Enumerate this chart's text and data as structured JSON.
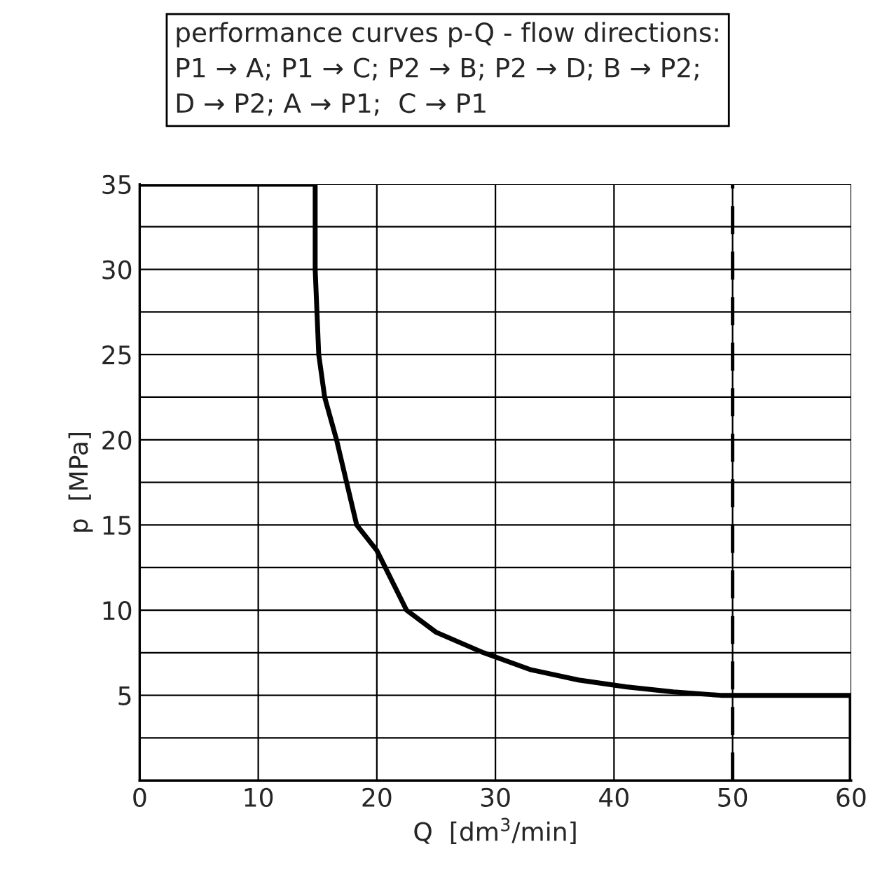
{
  "chart_data": {
    "type": "line",
    "title": "performance curves p-Q - flow directions:\nP1 → A; P1 → C; P2 → B; P2 → D; B → P2;\nD → P2; A → P1;  C → P1",
    "xlabel": "Q  [dm$^{3}$/min]",
    "ylabel": "p  [MPa]",
    "series": [
      {
        "color": "#000000",
        "x": [
          0,
          14.8,
          14.8,
          15.1,
          15.6,
          16.6,
          18.3,
          20,
          22.5,
          25,
          29,
          33,
          37,
          41,
          45,
          49,
          60,
          60
        ],
        "values": [
          35,
          35,
          30,
          25,
          22.5,
          20,
          15,
          13.5,
          10,
          8.7,
          7.5,
          6.5,
          5.9,
          5.5,
          5.2,
          5,
          5,
          0
        ]
      }
    ],
    "xlim": [
      0,
      60
    ],
    "ylim": [
      0,
      35
    ],
    "xticks": [
      0,
      10,
      20,
      30,
      40,
      50,
      60
    ],
    "yticks": [
      {
        "value": 2.5,
        "label": null
      },
      5,
      {
        "value": 7.5,
        "label": null
      },
      10,
      {
        "value": 12.5,
        "label": null
      },
      15,
      {
        "value": 17.5,
        "label": null
      },
      20,
      {
        "value": 22.5,
        "label": null
      },
      25,
      {
        "value": 27.5,
        "label": null
      },
      30,
      {
        "value": 32.5,
        "label": null
      },
      35
    ],
    "ref_lines": [
      {
        "axis": "x",
        "value": 50,
        "line_style": "dashed",
        "color": "#000000"
      }
    ],
    "grid": true,
    "line_style": "solid",
    "marker": "none"
  }
}
